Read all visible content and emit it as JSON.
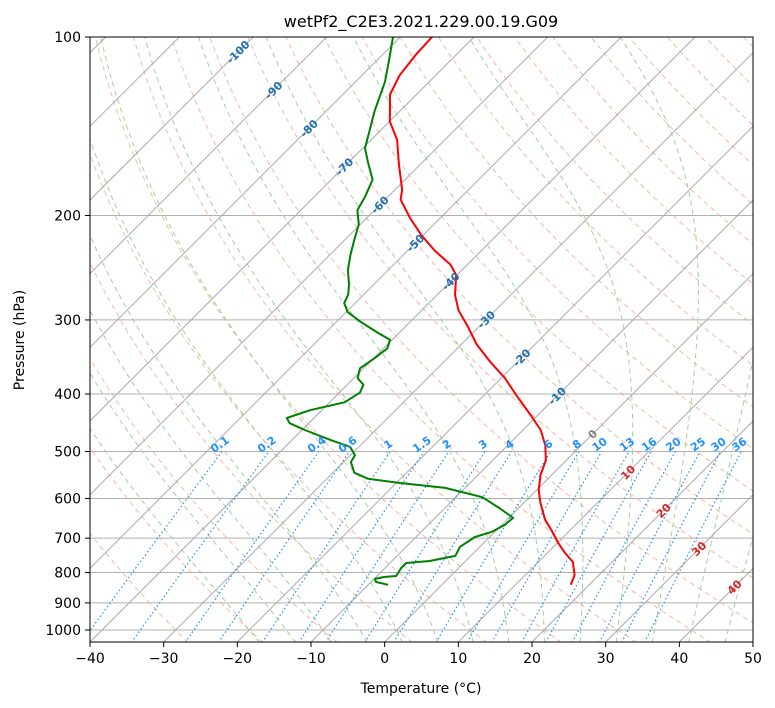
{
  "chart_data": {
    "type": "line",
    "subtype": "skew-T log-P diagram",
    "title": "wetPf2_C2E3.2021.229.00.19.G09",
    "xlabel": "Temperature (°C)",
    "ylabel": "Pressure (hPa)",
    "xlim": [
      -40,
      50
    ],
    "ylim": [
      1050,
      100
    ],
    "x_ticks": [
      "−40",
      "−30",
      "−20",
      "−10",
      "0",
      "10",
      "20",
      "30",
      "40",
      "50"
    ],
    "x_tick_values": [
      -40,
      -30,
      -20,
      -10,
      0,
      10,
      20,
      30,
      40,
      50
    ],
    "y_ticks": [
      "100",
      "200",
      "300",
      "400",
      "500",
      "600",
      "700",
      "800",
      "900",
      "1000"
    ],
    "y_tick_values": [
      100,
      200,
      300,
      400,
      500,
      600,
      700,
      800,
      900,
      1000
    ],
    "grid": true,
    "isotherm_labels": [
      "-100",
      "-90",
      "-80",
      "-70",
      "-60",
      "-50",
      "-40",
      "-30",
      "-20",
      "-10",
      "0",
      "10",
      "20",
      "30",
      "40"
    ],
    "isotherm_label_values": [
      -100,
      -90,
      -80,
      -70,
      -60,
      -50,
      -40,
      -30,
      -20,
      -10,
      0,
      10,
      20,
      30,
      40
    ],
    "mixing_ratio_labels": [
      "0.1",
      "0.2",
      "0.4",
      "0.6",
      "1",
      "1.5",
      "2",
      "3",
      "4",
      "6",
      "8",
      "10",
      "13",
      "16",
      "20",
      "25",
      "30",
      "36"
    ],
    "mixing_ratio_values": [
      0.1,
      0.2,
      0.4,
      0.6,
      1,
      1.5,
      2,
      3,
      4,
      6,
      8,
      10,
      13,
      16,
      20,
      25,
      30,
      36
    ],
    "series": [
      {
        "name": "Temperature",
        "color": "#ff0000",
        "pressure": [
          839,
          808,
          768,
          739,
          713,
          678,
          652,
          611,
          581,
          548,
          517,
          488,
          460,
          434,
          402,
          376,
          353,
          330,
          308,
          289,
          272,
          252,
          242,
          229,
          216,
          202,
          188,
          181,
          164,
          149,
          139,
          125,
          116,
          107,
          100
        ],
        "values": [
          17.5,
          16.7,
          14.7,
          12.2,
          10.1,
          7.4,
          5.2,
          2.3,
          0.3,
          -1.5,
          -2.8,
          -4.9,
          -7.6,
          -11.0,
          -15.6,
          -19.5,
          -23.7,
          -27.9,
          -31.5,
          -35.0,
          -37.6,
          -40.1,
          -42.3,
          -46.4,
          -50.2,
          -54.1,
          -57.9,
          -59.0,
          -62.9,
          -66.5,
          -69.9,
          -73.6,
          -74.9,
          -75.5,
          -75.7
        ]
      },
      {
        "name": "Dewpoint",
        "color": "#008000",
        "pressure": [
          839,
          830,
          820,
          814,
          811,
          786,
          771,
          765,
          750,
          724,
          697,
          683,
          665,
          647,
          623,
          597,
          576,
          565,
          556,
          543,
          521,
          507,
          491,
          478,
          460,
          448,
          439,
          426,
          413,
          398,
          386,
          376,
          362,
          348,
          335,
          324,
          315,
          302,
          291,
          281,
          272,
          262,
          247,
          233,
          220,
          207,
          196,
          186,
          174,
          163,
          154,
          133,
          119,
          109,
          100
        ],
        "values": [
          -7.3,
          -9.3,
          -9.9,
          -8.9,
          -7.4,
          -7.8,
          -7.8,
          -4.9,
          -2.1,
          -2.7,
          -2.0,
          -0.4,
          0.4,
          0.6,
          -2.6,
          -6.4,
          -12.7,
          -19.5,
          -24.4,
          -27.1,
          -29.0,
          -29.4,
          -31.2,
          -34.8,
          -39.6,
          -42.6,
          -43.7,
          -41.6,
          -38.0,
          -37.2,
          -37.8,
          -39.5,
          -40.5,
          -39.9,
          -39.5,
          -40.3,
          -43.0,
          -46.8,
          -49.8,
          -51.5,
          -52.1,
          -53.3,
          -55.5,
          -57.2,
          -58.7,
          -60.2,
          -62.3,
          -63.1,
          -64.4,
          -67.3,
          -69.7,
          -73.5,
          -76.0,
          -78.5,
          -81.0
        ]
      }
    ],
    "colors": {
      "isotherm": "#aaaaaa",
      "dry_adiabat": "#f5a58a",
      "moist_adiabat": "#9fd09f",
      "mixing_ratio": "#1e90ff",
      "label_negative": "#1f6fb4",
      "label_zero": "#808080",
      "label_positive": "#d62728"
    }
  }
}
